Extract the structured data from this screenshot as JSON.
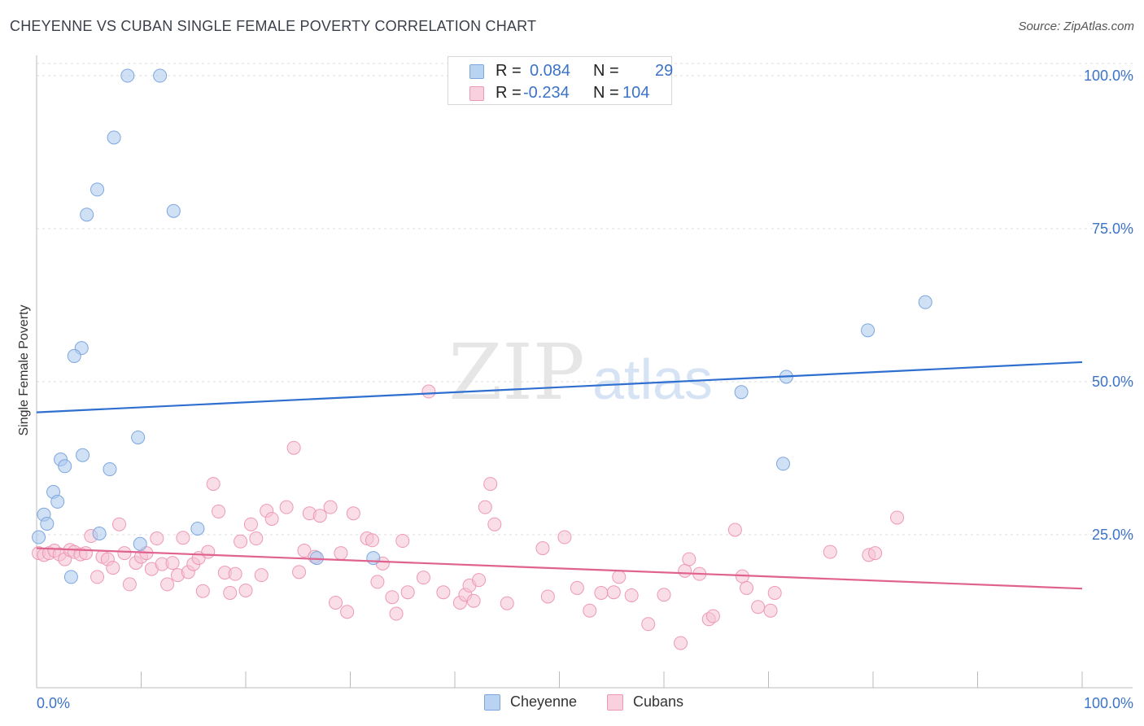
{
  "chart_data": {
    "type": "scatter",
    "title": "CHEYENNE VS CUBAN SINGLE FEMALE POVERTY CORRELATION CHART",
    "source": "Source: ZipAtlas.com",
    "xlabel": "",
    "ylabel": "Single Female Poverty",
    "xlim": [
      0,
      100
    ],
    "ylim": [
      0,
      102
    ],
    "x_tick_labels": [
      "0.0%",
      "100.0%"
    ],
    "y_tick_values": [
      25,
      50,
      75,
      100
    ],
    "y_tick_labels": [
      "25.0%",
      "50.0%",
      "75.0%",
      "100.0%"
    ],
    "watermark": {
      "zip": "ZIP",
      "atlas": "atlas"
    },
    "legend_stats": {
      "r_label": "R =",
      "n_label": "N =",
      "rows": [
        {
          "r": "0.084",
          "n": "29"
        },
        {
          "r": "-0.234",
          "n": "104"
        }
      ]
    },
    "series": [
      {
        "name": "Cheyenne",
        "color": "#a9c9ef",
        "stroke": "#7da6de",
        "line_color": "#2f6fcf",
        "trend": {
          "x": [
            0,
            100
          ],
          "y": [
            45.0,
            53.2
          ]
        },
        "points": [
          [
            8.7,
            100.0
          ],
          [
            11.8,
            100.0
          ],
          [
            7.4,
            89.9
          ],
          [
            5.8,
            81.4
          ],
          [
            4.8,
            77.3
          ],
          [
            13.1,
            77.9
          ],
          [
            4.3,
            55.5
          ],
          [
            3.6,
            54.2
          ],
          [
            9.7,
            40.9
          ],
          [
            4.4,
            38.0
          ],
          [
            2.3,
            37.3
          ],
          [
            2.7,
            36.2
          ],
          [
            7.0,
            35.7
          ],
          [
            1.6,
            32.0
          ],
          [
            2.0,
            30.4
          ],
          [
            0.7,
            28.3
          ],
          [
            1.0,
            26.8
          ],
          [
            0.2,
            24.6
          ],
          [
            6.0,
            25.2
          ],
          [
            15.4,
            26.0
          ],
          [
            3.3,
            18.1
          ],
          [
            9.9,
            23.5
          ],
          [
            26.8,
            21.2
          ],
          [
            32.2,
            21.2
          ],
          [
            67.4,
            48.3
          ],
          [
            71.7,
            50.8
          ],
          [
            79.5,
            58.4
          ],
          [
            85.0,
            63.0
          ],
          [
            71.4,
            36.6
          ]
        ]
      },
      {
        "name": "Cubans",
        "color": "#f6c3d3",
        "stroke": "#ee99b4",
        "line_color": "#e0628f",
        "trend": {
          "x": [
            0,
            100
          ],
          "y": [
            22.8,
            16.2
          ]
        },
        "points": [
          [
            0.2,
            22.0
          ],
          [
            0.7,
            21.7
          ],
          [
            1.2,
            22.0
          ],
          [
            1.7,
            22.4
          ],
          [
            2.2,
            21.8
          ],
          [
            2.7,
            21.0
          ],
          [
            3.2,
            22.5
          ],
          [
            3.6,
            22.2
          ],
          [
            4.2,
            21.8
          ],
          [
            4.7,
            22.0
          ],
          [
            5.2,
            24.8
          ],
          [
            5.8,
            18.1
          ],
          [
            6.3,
            21.4
          ],
          [
            6.8,
            21.0
          ],
          [
            7.3,
            19.6
          ],
          [
            7.9,
            26.7
          ],
          [
            8.4,
            22.0
          ],
          [
            8.9,
            16.9
          ],
          [
            9.5,
            20.4
          ],
          [
            10.0,
            21.4
          ],
          [
            10.5,
            22.0
          ],
          [
            11.0,
            19.4
          ],
          [
            11.5,
            24.4
          ],
          [
            12.0,
            20.2
          ],
          [
            12.5,
            16.9
          ],
          [
            13.0,
            20.4
          ],
          [
            13.5,
            18.4
          ],
          [
            14.0,
            24.5
          ],
          [
            14.5,
            18.9
          ],
          [
            15.0,
            20.2
          ],
          [
            15.5,
            21.2
          ],
          [
            15.9,
            15.8
          ],
          [
            16.4,
            22.2
          ],
          [
            16.9,
            33.3
          ],
          [
            17.4,
            28.8
          ],
          [
            18.0,
            18.8
          ],
          [
            18.5,
            15.5
          ],
          [
            19.0,
            18.6
          ],
          [
            19.5,
            23.9
          ],
          [
            20.0,
            15.9
          ],
          [
            20.5,
            26.7
          ],
          [
            21.0,
            24.4
          ],
          [
            21.5,
            18.4
          ],
          [
            22.0,
            28.9
          ],
          [
            22.5,
            27.6
          ],
          [
            23.9,
            29.5
          ],
          [
            24.6,
            39.2
          ],
          [
            25.1,
            18.9
          ],
          [
            25.6,
            22.4
          ],
          [
            26.1,
            28.5
          ],
          [
            26.6,
            21.4
          ],
          [
            27.1,
            28.1
          ],
          [
            28.1,
            29.5
          ],
          [
            28.6,
            13.9
          ],
          [
            29.1,
            22.0
          ],
          [
            29.7,
            12.4
          ],
          [
            30.3,
            28.5
          ],
          [
            31.6,
            24.4
          ],
          [
            32.1,
            24.1
          ],
          [
            32.6,
            17.3
          ],
          [
            33.1,
            20.3
          ],
          [
            34.0,
            14.8
          ],
          [
            34.4,
            12.1
          ],
          [
            35.0,
            24.0
          ],
          [
            35.5,
            15.6
          ],
          [
            37.0,
            18.0
          ],
          [
            37.5,
            48.4
          ],
          [
            38.9,
            15.6
          ],
          [
            40.5,
            13.9
          ],
          [
            41.0,
            15.2
          ],
          [
            41.4,
            16.7
          ],
          [
            41.8,
            14.2
          ],
          [
            42.3,
            17.6
          ],
          [
            42.9,
            29.5
          ],
          [
            43.4,
            33.3
          ],
          [
            43.8,
            26.7
          ],
          [
            45.0,
            13.8
          ],
          [
            48.4,
            22.8
          ],
          [
            48.9,
            14.9
          ],
          [
            50.5,
            24.6
          ],
          [
            51.7,
            16.3
          ],
          [
            52.9,
            12.6
          ],
          [
            54.0,
            15.5
          ],
          [
            55.2,
            15.6
          ],
          [
            55.7,
            18.1
          ],
          [
            56.9,
            15.1
          ],
          [
            58.5,
            10.4
          ],
          [
            60.0,
            15.2
          ],
          [
            61.6,
            7.3
          ],
          [
            62.0,
            19.1
          ],
          [
            62.4,
            21.0
          ],
          [
            63.4,
            18.6
          ],
          [
            64.3,
            11.2
          ],
          [
            64.7,
            11.7
          ],
          [
            66.8,
            25.8
          ],
          [
            67.5,
            18.2
          ],
          [
            67.9,
            16.3
          ],
          [
            69.0,
            13.2
          ],
          [
            70.2,
            12.6
          ],
          [
            70.6,
            15.5
          ],
          [
            75.9,
            22.2
          ],
          [
            79.6,
            21.7
          ],
          [
            80.2,
            22.0
          ],
          [
            82.3,
            27.8
          ]
        ]
      }
    ]
  }
}
